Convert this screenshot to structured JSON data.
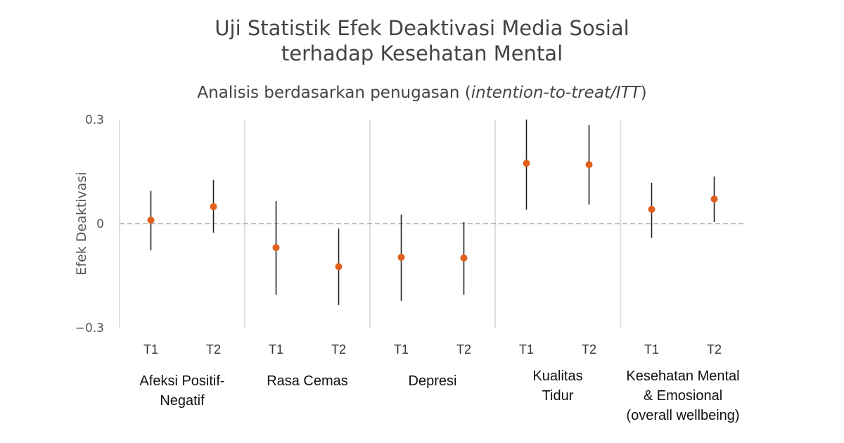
{
  "chart_data": {
    "type": "scatter",
    "title_lines": [
      "Uji Statistik Efek Deaktivasi Media Sosial",
      "terhadap Kesehatan Mental"
    ],
    "subtitle_prefix": "Analisis berdasarkan penugasan (",
    "subtitle_italic": "intention-to-treat/ITT",
    "subtitle_suffix": ")",
    "ylabel": "Efek Deaktivasi",
    "ylim": [
      -0.3,
      0.3
    ],
    "yticks": [
      "0.3",
      "0",
      "−0.3"
    ],
    "ytick_values": [
      0.3,
      0,
      -0.3
    ],
    "reference_line": 0,
    "grid": "vertical separators between groups",
    "point_color": "#E0601C",
    "errorbar_color": "#222222",
    "groups": [
      {
        "label_lines": [
          "Afeksi Positif-",
          "Negatif"
        ],
        "points": [
          {
            "x": "T1",
            "y": 0.01,
            "lo": -0.077,
            "hi": 0.095
          },
          {
            "x": "T2",
            "y": 0.049,
            "lo": -0.026,
            "hi": 0.126
          }
        ]
      },
      {
        "label_lines": [
          "Rasa Cemas"
        ],
        "points": [
          {
            "x": "T1",
            "y": -0.069,
            "lo": -0.205,
            "hi": 0.065
          },
          {
            "x": "T2",
            "y": -0.124,
            "lo": -0.235,
            "hi": -0.014
          }
        ]
      },
      {
        "label_lines": [
          "Depresi"
        ],
        "points": [
          {
            "x": "T1",
            "y": -0.097,
            "lo": -0.223,
            "hi": 0.026
          },
          {
            "x": "T2",
            "y": -0.099,
            "lo": -0.205,
            "hi": 0.004
          }
        ]
      },
      {
        "label_lines": [
          "Kualitas",
          "Tidur"
        ],
        "points": [
          {
            "x": "T1",
            "y": 0.174,
            "lo": 0.04,
            "hi": 0.3
          },
          {
            "x": "T2",
            "y": 0.17,
            "lo": 0.055,
            "hi": 0.284
          }
        ]
      },
      {
        "label_lines": [
          "Kesehatan Mental",
          "& Emosional",
          "(overall wellbeing)"
        ],
        "points": [
          {
            "x": "T1",
            "y": 0.041,
            "lo": -0.041,
            "hi": 0.118
          },
          {
            "x": "T2",
            "y": 0.071,
            "lo": 0.004,
            "hi": 0.136
          }
        ]
      }
    ]
  }
}
